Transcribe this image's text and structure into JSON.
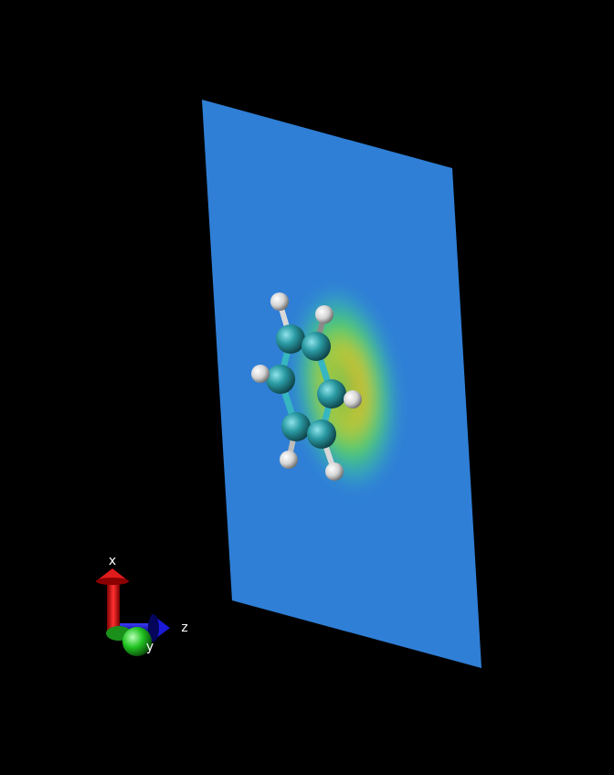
{
  "scene": {
    "background": "#000000",
    "plane_color": "#2f7fd6",
    "carbon_color": "#2a9aa3",
    "hydrogen_color": "#e6e6e6",
    "bond_color_carbon": "#36b6c0",
    "bond_color_hydrogen": "#d8d8d8"
  },
  "axes": {
    "x_label": "x",
    "y_label": "y",
    "z_label": "z",
    "x_color": "#e01b1b",
    "y_color": "#21c421",
    "z_color": "#1a1ad8"
  }
}
